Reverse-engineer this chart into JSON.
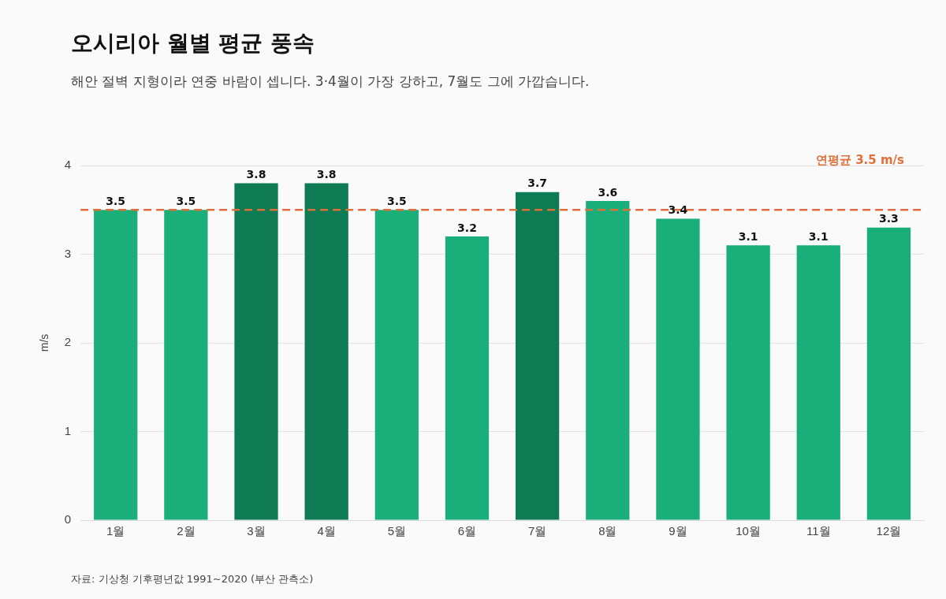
{
  "chart_data": {
    "type": "bar",
    "title": "오시리아 월별 평균 풍속",
    "subtitle": "해안 절벽 지형이라 연중 바람이 셉니다. 3·4월이 가장 강하고, 7월도 그에 가깝습니다.",
    "ylabel": "m/s",
    "categories": [
      "1월",
      "2월",
      "3월",
      "4월",
      "5월",
      "6월",
      "7월",
      "8월",
      "9월",
      "10월",
      "11월",
      "12월"
    ],
    "values": [
      3.5,
      3.5,
      3.8,
      3.8,
      3.5,
      3.2,
      3.7,
      3.6,
      3.4,
      3.1,
      3.1,
      3.3
    ],
    "colors": [
      "#1aaf7a",
      "#1aaf7a",
      "#0f7b55",
      "#0f7b55",
      "#1aaf7a",
      "#1aaf7a",
      "#0f7b55",
      "#1aaf7a",
      "#1aaf7a",
      "#1aaf7a",
      "#1aaf7a",
      "#1aaf7a"
    ],
    "ylim": [
      0,
      4
    ],
    "yticks": [
      0,
      1,
      2,
      3,
      4
    ],
    "grid": "y",
    "legend": false,
    "data_labels": true,
    "ref_lines": [
      {
        "axis": "y",
        "value": 3.5,
        "label": "연평균 3.5 m/s",
        "color": "#e0703a",
        "line_style": "dashed"
      }
    ],
    "annotations": [
      "자료: 기상청 기후평년값 1991~2020 (부산 관측소)"
    ]
  }
}
